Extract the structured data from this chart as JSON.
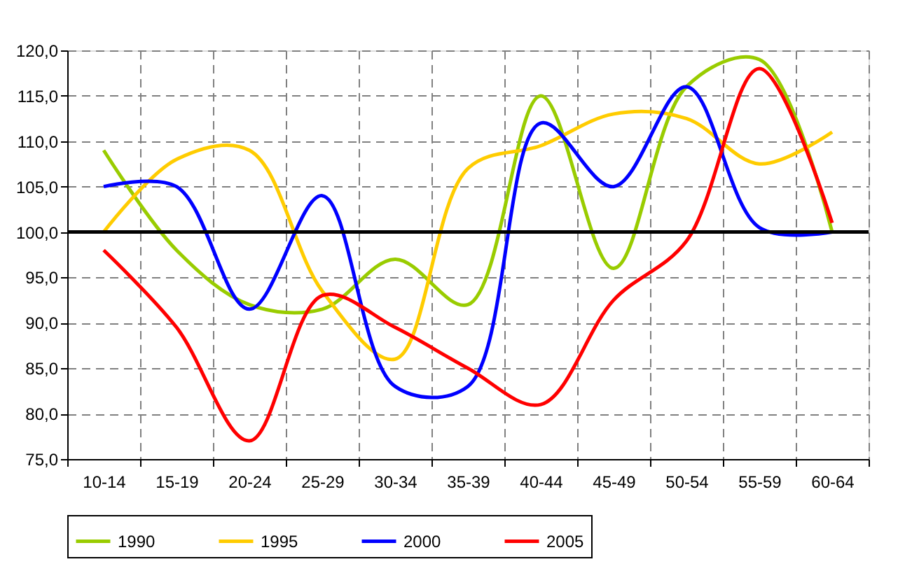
{
  "chart_data": {
    "type": "line",
    "categories": [
      "10-14",
      "15-19",
      "20-24",
      "25-29",
      "30-34",
      "35-39",
      "40-44",
      "45-49",
      "50-54",
      "55-59",
      "60-64"
    ],
    "series": [
      {
        "name": "1990",
        "color": "#99cc00",
        "values": [
          109,
          98,
          92,
          91.5,
          97,
          92,
          115,
          96,
          116,
          119,
          100
        ]
      },
      {
        "name": "1995",
        "color": "#ffcc00",
        "values": [
          100,
          108,
          109,
          93.5,
          86,
          107,
          109.5,
          113,
          112.5,
          107.5,
          111
        ]
      },
      {
        "name": "2000",
        "color": "#0000ff",
        "values": [
          105,
          105,
          91.5,
          104,
          83,
          83,
          112,
          105,
          116,
          100.5,
          100
        ]
      },
      {
        "name": "2005",
        "color": "#ff0000",
        "values": [
          98,
          89.5,
          77,
          93,
          89.5,
          85,
          81,
          92.5,
          99,
          118,
          101
        ]
      }
    ],
    "ylim": [
      75,
      120
    ],
    "yticks": [
      {
        "value": 75,
        "label": "75,0"
      },
      {
        "value": 80,
        "label": "80,0"
      },
      {
        "value": 85,
        "label": "85,0"
      },
      {
        "value": 90,
        "label": "90,0"
      },
      {
        "value": 95,
        "label": "95,0"
      },
      {
        "value": 100,
        "label": "100,0"
      },
      {
        "value": 105,
        "label": "105,0"
      },
      {
        "value": 110,
        "label": "110,0"
      },
      {
        "value": 115,
        "label": "115,0"
      },
      {
        "value": 120,
        "label": "120,0"
      }
    ],
    "ref_lines": [
      {
        "axis": "y",
        "value": 100,
        "color": "#000000"
      }
    ],
    "grid": true,
    "legend": "bottom",
    "marker": "none",
    "line_style": "solid"
  }
}
